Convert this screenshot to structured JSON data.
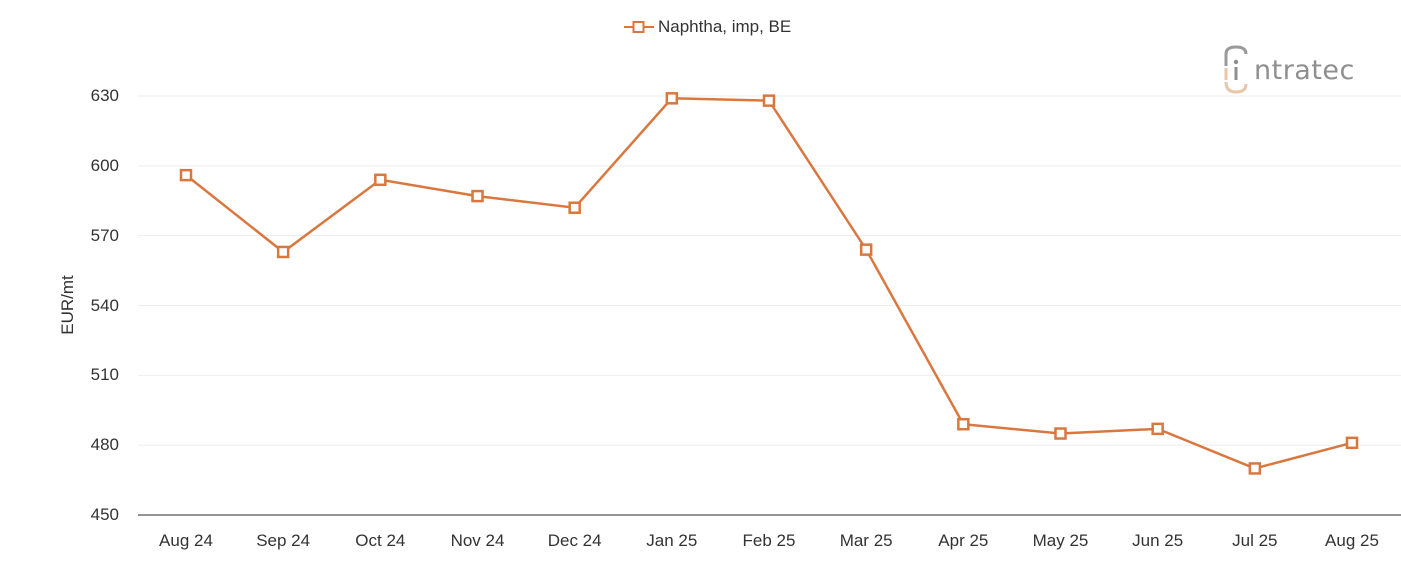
{
  "chart_data": {
    "type": "line",
    "title": "",
    "xlabel": "",
    "ylabel": "EUR/mt",
    "ylim": [
      450,
      630
    ],
    "yticks": [
      450,
      480,
      510,
      540,
      570,
      600,
      630
    ],
    "grid": true,
    "legend_position": "top-center",
    "categories": [
      "Aug 24",
      "Sep 24",
      "Oct 24",
      "Nov 24",
      "Dec 24",
      "Jan 25",
      "Feb 25",
      "Mar 25",
      "Apr 25",
      "May 25",
      "Jun 25",
      "Jul 25",
      "Aug 25"
    ],
    "series": [
      {
        "name": "Naphtha, imp, BE",
        "color": "#d9773f",
        "marker": "square-open",
        "values": [
          596,
          563,
          594,
          587,
          582,
          629,
          628,
          564,
          489,
          485,
          487,
          470,
          481
        ]
      }
    ]
  },
  "legend": {
    "label": "Naphtha, imp, BE"
  },
  "axis": {
    "ylabel": "EUR/mt",
    "yticks": [
      "450",
      "480",
      "510",
      "540",
      "570",
      "600",
      "630"
    ],
    "xticks": [
      "Aug 24",
      "Sep 24",
      "Oct 24",
      "Nov 24",
      "Dec 24",
      "Jan 25",
      "Feb 25",
      "Mar 25",
      "Apr 25",
      "May 25",
      "Jun 25",
      "Jul 25",
      "Aug 25"
    ]
  },
  "logo": {
    "text": "ntratec",
    "full": "intratec"
  },
  "colors": {
    "line": "#d9773f",
    "grid": "#eeeeee",
    "axis": "#555555",
    "logo_gray": "#8f8f8f",
    "logo_accent": "#e8c6a8"
  }
}
